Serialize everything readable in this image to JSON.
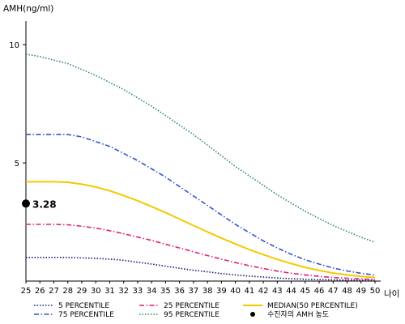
{
  "chart_data": {
    "type": "line",
    "ylabel": "AMH(ng/ml)",
    "xlabel": "나이",
    "xlim": [
      25,
      50
    ],
    "ylim": [
      0,
      11
    ],
    "x": [
      25,
      26,
      27,
      28,
      29,
      30,
      31,
      32,
      33,
      34,
      35,
      36,
      37,
      38,
      39,
      40,
      41,
      42,
      43,
      44,
      45,
      46,
      47,
      48,
      49,
      50
    ],
    "x_ticks": [
      "25",
      "26",
      "27",
      "28",
      "29",
      "30",
      "31",
      "32",
      "33",
      "34",
      "35",
      "36",
      "37",
      "38",
      "39",
      "40",
      "41",
      "42",
      "43",
      "44",
      "45",
      "46",
      "47",
      "48",
      "49",
      "50"
    ],
    "y_ticks": [
      {
        "value": 5,
        "label": "5"
      },
      {
        "value": 10,
        "label": "10"
      }
    ],
    "grid": false,
    "legend_position": "bottom",
    "series": [
      {
        "name": "5 PERCENTILE",
        "color": "#1a1a7a",
        "dash": "dotted",
        "values": [
          1.0,
          1.0,
          1.0,
          1.0,
          0.98,
          0.96,
          0.93,
          0.88,
          0.8,
          0.72,
          0.63,
          0.54,
          0.46,
          0.39,
          0.32,
          0.26,
          0.21,
          0.17,
          0.13,
          0.1,
          0.08,
          0.06,
          0.05,
          0.04,
          0.035,
          0.03
        ]
      },
      {
        "name": "75 PERCENTILE",
        "color": "#3355cc",
        "dash": "dashdot",
        "values": [
          6.2,
          6.2,
          6.2,
          6.2,
          6.1,
          5.9,
          5.7,
          5.4,
          5.1,
          4.75,
          4.4,
          4.0,
          3.6,
          3.2,
          2.8,
          2.4,
          2.05,
          1.7,
          1.4,
          1.13,
          0.9,
          0.72,
          0.55,
          0.43,
          0.33,
          0.25
        ]
      },
      {
        "name": "25 PERCENTILE",
        "color": "#e0207a",
        "dash": "dashdot",
        "values": [
          2.4,
          2.4,
          2.4,
          2.38,
          2.32,
          2.24,
          2.13,
          2.0,
          1.86,
          1.72,
          1.56,
          1.4,
          1.24,
          1.08,
          0.93,
          0.78,
          0.65,
          0.53,
          0.42,
          0.33,
          0.26,
          0.2,
          0.15,
          0.12,
          0.09,
          0.07
        ]
      },
      {
        "name": "95 PERCENTILE",
        "color": "#2e8b57",
        "dash": "dotted",
        "values": [
          9.6,
          9.5,
          9.35,
          9.2,
          8.95,
          8.7,
          8.4,
          8.1,
          7.75,
          7.4,
          7.0,
          6.6,
          6.2,
          5.75,
          5.3,
          4.85,
          4.45,
          4.05,
          3.65,
          3.3,
          2.95,
          2.65,
          2.35,
          2.1,
          1.85,
          1.65
        ]
      },
      {
        "name": "MEDIAN(50 PERCENTILE)",
        "color": "#f5c800",
        "dash": "solid",
        "values": [
          4.2,
          4.2,
          4.2,
          4.18,
          4.1,
          3.98,
          3.82,
          3.62,
          3.4,
          3.15,
          2.9,
          2.62,
          2.35,
          2.08,
          1.82,
          1.57,
          1.33,
          1.12,
          0.92,
          0.74,
          0.58,
          0.45,
          0.34,
          0.26,
          0.2,
          0.15
        ]
      }
    ],
    "markers": [
      {
        "name": "수진자의 AMH 농도",
        "x": 25,
        "y": 3.28,
        "label": "3.28",
        "color": "#000000"
      }
    ]
  }
}
